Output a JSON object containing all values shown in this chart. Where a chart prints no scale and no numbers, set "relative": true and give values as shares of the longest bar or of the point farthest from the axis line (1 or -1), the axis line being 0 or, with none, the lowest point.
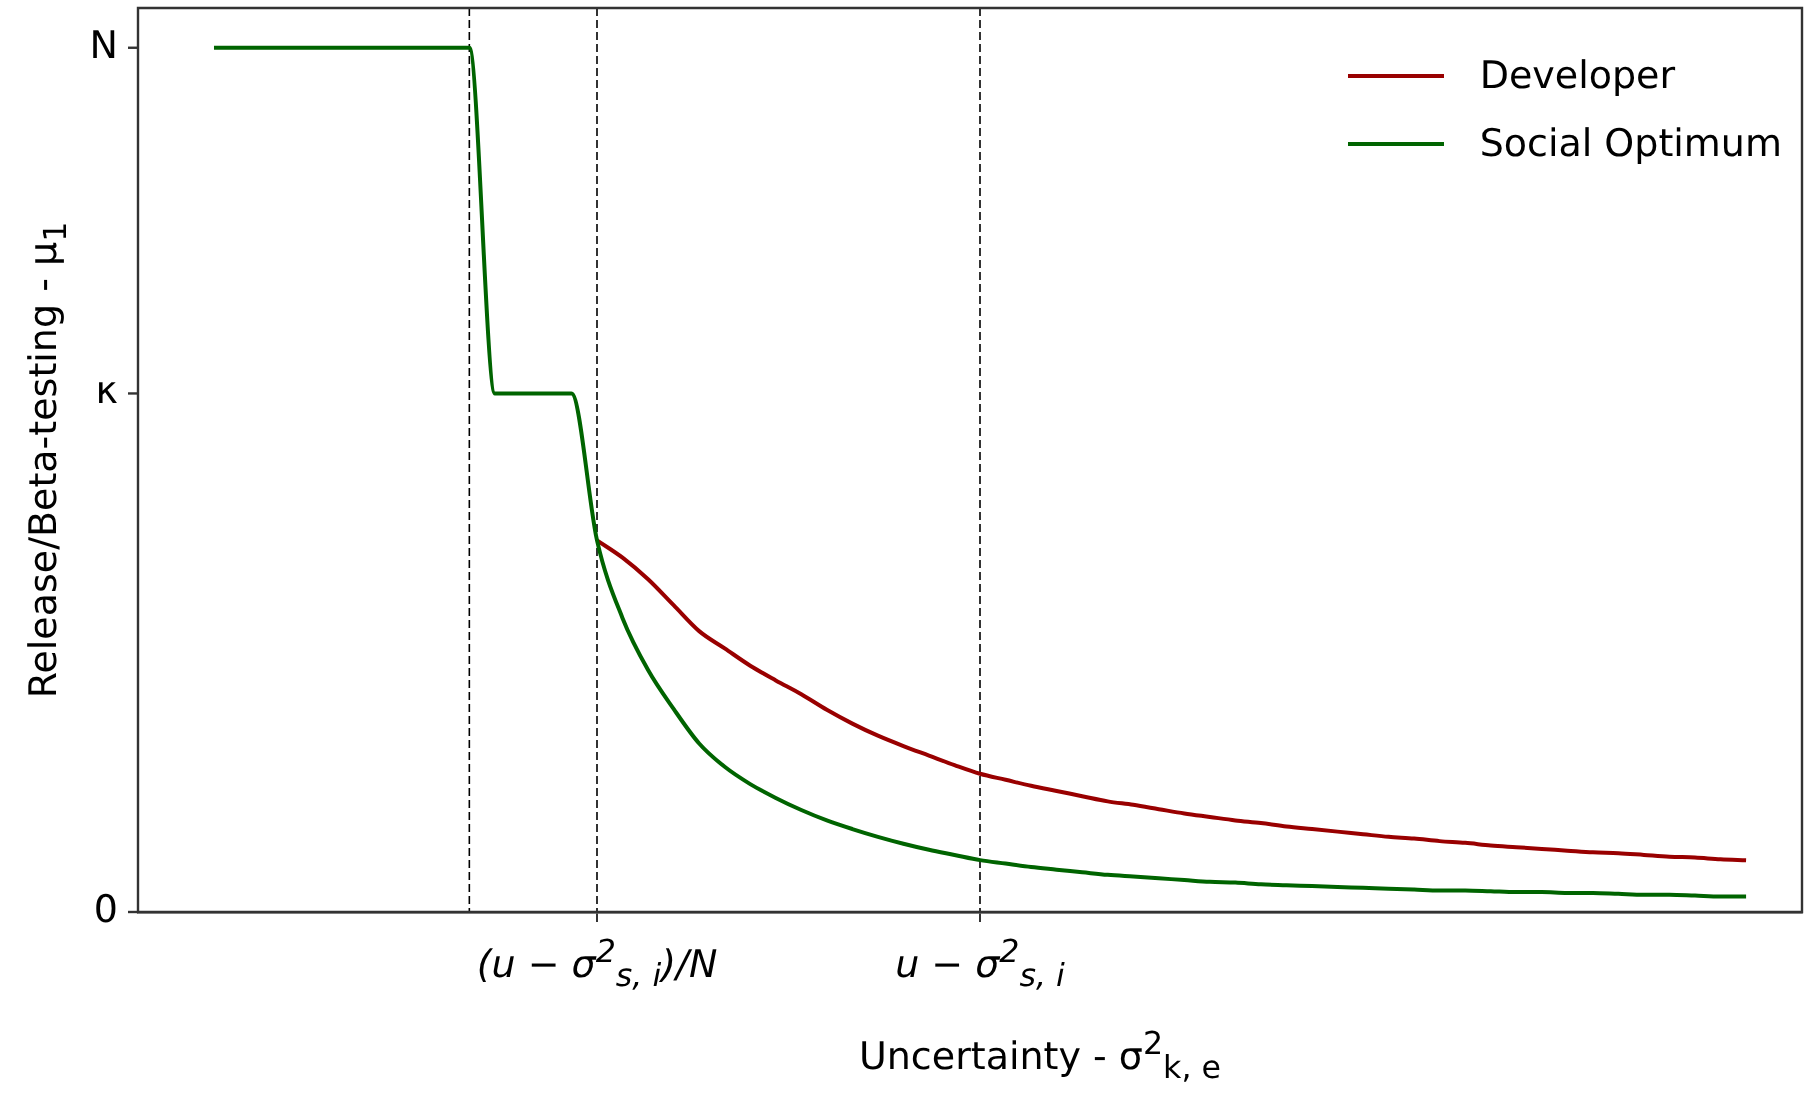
{
  "chart_data": {
    "type": "line",
    "relative": true,
    "xlabel": "Uncertainty - σ$^{2}$$_{k, e}$",
    "ylabel": "Release/Beta-testing - μ$_{1}$",
    "categories": [
      null,
      null,
      null,
      null,
      null,
      null,
      null,
      null,
      null,
      null,
      null,
      null,
      null,
      null,
      null,
      "(u − σ$^{2}$$_{s, i}$)/N",
      null,
      null,
      null,
      null,
      null,
      null,
      null,
      null,
      null,
      null,
      null,
      null,
      null,
      null,
      "u − σ$^{2}$$_{s, i}$",
      null,
      null,
      null,
      null,
      null,
      null,
      null,
      null,
      null,
      null,
      null,
      null,
      null,
      null,
      null,
      null,
      null,
      null,
      null,
      null,
      null,
      null,
      null,
      null,
      null,
      null,
      null,
      null,
      null,
      null
    ],
    "series": [
      {
        "name": "Developer",
        "color": "#990000",
        "values": [
          null,
          null,
          null,
          null,
          null,
          null,
          null,
          null,
          null,
          null,
          null,
          null,
          null,
          null,
          null,
          0.43,
          0.41,
          0.385,
          0.355,
          0.325,
          0.305,
          0.285,
          0.268,
          0.252,
          0.234,
          0.218,
          0.204,
          0.192,
          0.181,
          0.17,
          0.16,
          0.153,
          0.146,
          0.14,
          0.134,
          0.128,
          0.124,
          0.119,
          0.114,
          0.11,
          0.106,
          0.103,
          0.099,
          0.096,
          0.093,
          0.09,
          0.087,
          0.085,
          0.082,
          0.08,
          0.077,
          0.075,
          0.073,
          0.071,
          0.069,
          0.068,
          0.066,
          0.064,
          0.063,
          0.061,
          0.06
        ]
      },
      {
        "name": "Social Optimum",
        "color": "#006400",
        "values": [
          1,
          1,
          1,
          1,
          1,
          1,
          1,
          1,
          1,
          1,
          1,
          0.6,
          0.6,
          0.6,
          0.6,
          0.43,
          0.34,
          0.28,
          0.235,
          0.195,
          0.168,
          0.148,
          0.132,
          0.118,
          0.106,
          0.096,
          0.087,
          0.079,
          0.072,
          0.066,
          0.06,
          0.056,
          0.052,
          0.049,
          0.046,
          0.043,
          0.041,
          0.039,
          0.037,
          0.035,
          0.034,
          0.032,
          0.031,
          0.03,
          0.029,
          0.028,
          0.027,
          0.026,
          0.025,
          0.025,
          0.024,
          0.023,
          0.023,
          0.022,
          0.022,
          0.021,
          0.02,
          0.02,
          0.019,
          0.018,
          0.018
        ]
      }
    ],
    "annotations": [
      "N",
      "κ",
      "0"
    ],
    "grid": "x",
    "legend": "top right",
    "marker": "none",
    "line_style": "solid"
  }
}
